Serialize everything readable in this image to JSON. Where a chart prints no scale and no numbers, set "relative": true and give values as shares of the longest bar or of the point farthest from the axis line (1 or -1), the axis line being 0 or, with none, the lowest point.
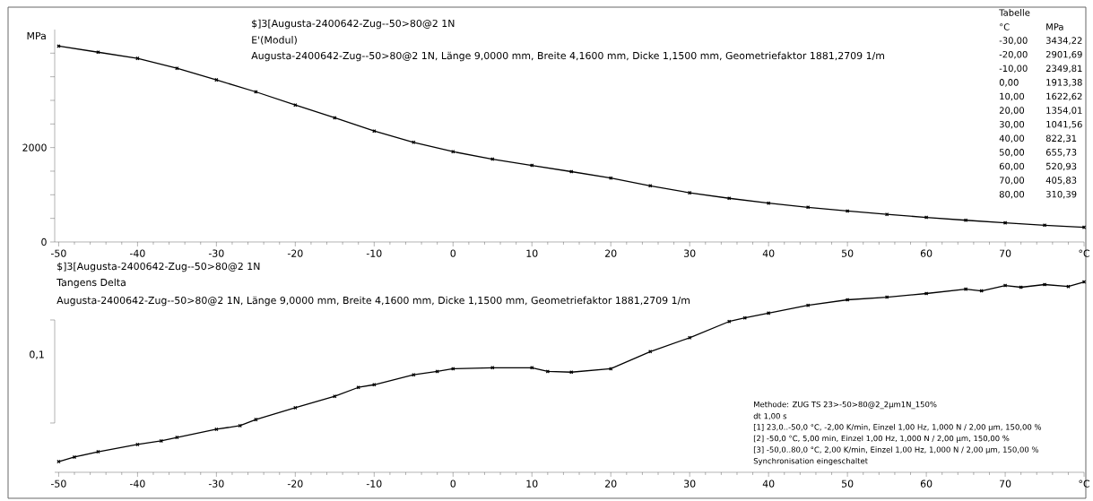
{
  "chart_data": [
    {
      "type": "line",
      "title": "$]3[Augusta-2400642-Zug--50>80@2 1N",
      "subtitle": "E'(Modul)",
      "ylabel": "MPa",
      "annotations": [
        "Augusta-2400642-Zug--50>80@2 1N, Länge 9,0000 mm, Breite 4,1600 mm, Dicke 1,1500 mm, Geometriefaktor 1881,2709 1/m",
        "Tabelle",
        "°C",
        "MPa",
        "-30,00",
        "3434,22",
        "-20,00",
        "2901,69",
        "-10,00",
        "2349,81",
        "0,00",
        "1913,38",
        "10,00",
        "1622,62",
        "20,00",
        "1354,01",
        "30,00",
        "1041,56",
        "40,00",
        "822,31",
        "50,00",
        "655,73",
        "60,00",
        "520,93",
        "70,00",
        "405,83",
        "80,00",
        "310,39"
      ],
      "x": [
        -50,
        -45,
        -40,
        -35,
        -30,
        -25,
        -20,
        -15,
        -10,
        -5,
        0,
        5,
        10,
        15,
        20,
        25,
        30,
        35,
        40,
        45,
        50,
        55,
        60,
        65,
        70,
        75,
        80
      ],
      "series": [
        {
          "color": "#000000",
          "values": [
            4150,
            4020,
            3890,
            3680,
            3434.22,
            3180,
            2901.69,
            2630,
            2349.81,
            2110,
            1913.38,
            1755,
            1622.62,
            1490,
            1354.01,
            1190,
            1041.56,
            925,
            822.31,
            735,
            655.73,
            585,
            520.93,
            460,
            405.83,
            355,
            310.39
          ]
        }
      ],
      "xlim": [
        -50.5,
        80
      ],
      "xticks": [
        -50,
        -40,
        -30,
        -20,
        -10,
        0,
        10,
        20,
        30,
        40,
        50,
        60,
        70,
        {
          "value": 80,
          "label": "°C"
        }
      ],
      "ylim": [
        0,
        4500
      ],
      "yticks": [
        0,
        {
          "value": 500,
          "label": null
        },
        {
          "value": 1000,
          "label": null
        },
        {
          "value": 1500,
          "label": null
        },
        2000,
        {
          "value": 2500,
          "label": null
        },
        {
          "value": 3000,
          "label": null
        },
        {
          "value": 3500,
          "label": null
        },
        {
          "value": 4000,
          "label": null
        }
      ],
      "marker": "cross",
      "line_style": "solid"
    },
    {
      "type": "line",
      "title": "$]3[Augusta-2400642-Zug--50>80@2 1N",
      "subtitle": "Tangens Delta",
      "relative": true,
      "annotations": [
        "Augusta-2400642-Zug--50>80@2 1N, Länge 9,0000 mm, Breite 4,1600 mm, Dicke 1,1500 mm, Geometriefaktor 1881,2709 1/m",
        "0,1",
        "Methode: ZUG TS 23>-50>80@2_2µm1N_150%",
        "dt 1,00 s",
        "[1] 23,0..-50,0 °C, -2,00 K/min,  Einzel 1,00 Hz, 1,000 N / 2,00 µm,  150,00 %",
        "[2] -50,0 °C, 5,00 min,  Einzel 1,00 Hz, 1,000 N / 2,00 µm,  150,00 %",
        "[3] -50,0..80,0 °C, 2,00 K/min,  Einzel 1,00 Hz, 1,000 N / 2,00 µm,  150,00 %",
        "Synchronisation eingeschaltet"
      ],
      "x": [
        -50,
        -48,
        -45,
        -40,
        -37,
        -35,
        -30,
        -27,
        -25,
        -20,
        -15,
        -12,
        -10,
        -5,
        -2,
        0,
        5,
        10,
        12,
        15,
        20,
        25,
        30,
        35,
        37,
        40,
        45,
        50,
        55,
        60,
        65,
        67,
        70,
        72,
        75,
        78,
        80
      ],
      "series": [
        {
          "color": "#000000",
          "values": [
            0.056,
            0.08,
            0.108,
            0.146,
            0.165,
            0.183,
            0.226,
            0.245,
            0.277,
            0.339,
            0.399,
            0.446,
            0.46,
            0.512,
            0.53,
            0.544,
            0.549,
            0.549,
            0.53,
            0.526,
            0.544,
            0.634,
            0.707,
            0.792,
            0.811,
            0.836,
            0.877,
            0.906,
            0.92,
            0.939,
            0.962,
            0.953,
            0.981,
            0.972,
            0.986,
            0.976,
            1
          ]
        }
      ],
      "xlim": [
        -50.5,
        80
      ],
      "xticks": [
        -50,
        -40,
        -30,
        -20,
        -10,
        0,
        10,
        20,
        30,
        40,
        50,
        60,
        70,
        {
          "value": 80,
          "label": "°C"
        }
      ],
      "marker": "cross",
      "line_style": "solid"
    }
  ]
}
